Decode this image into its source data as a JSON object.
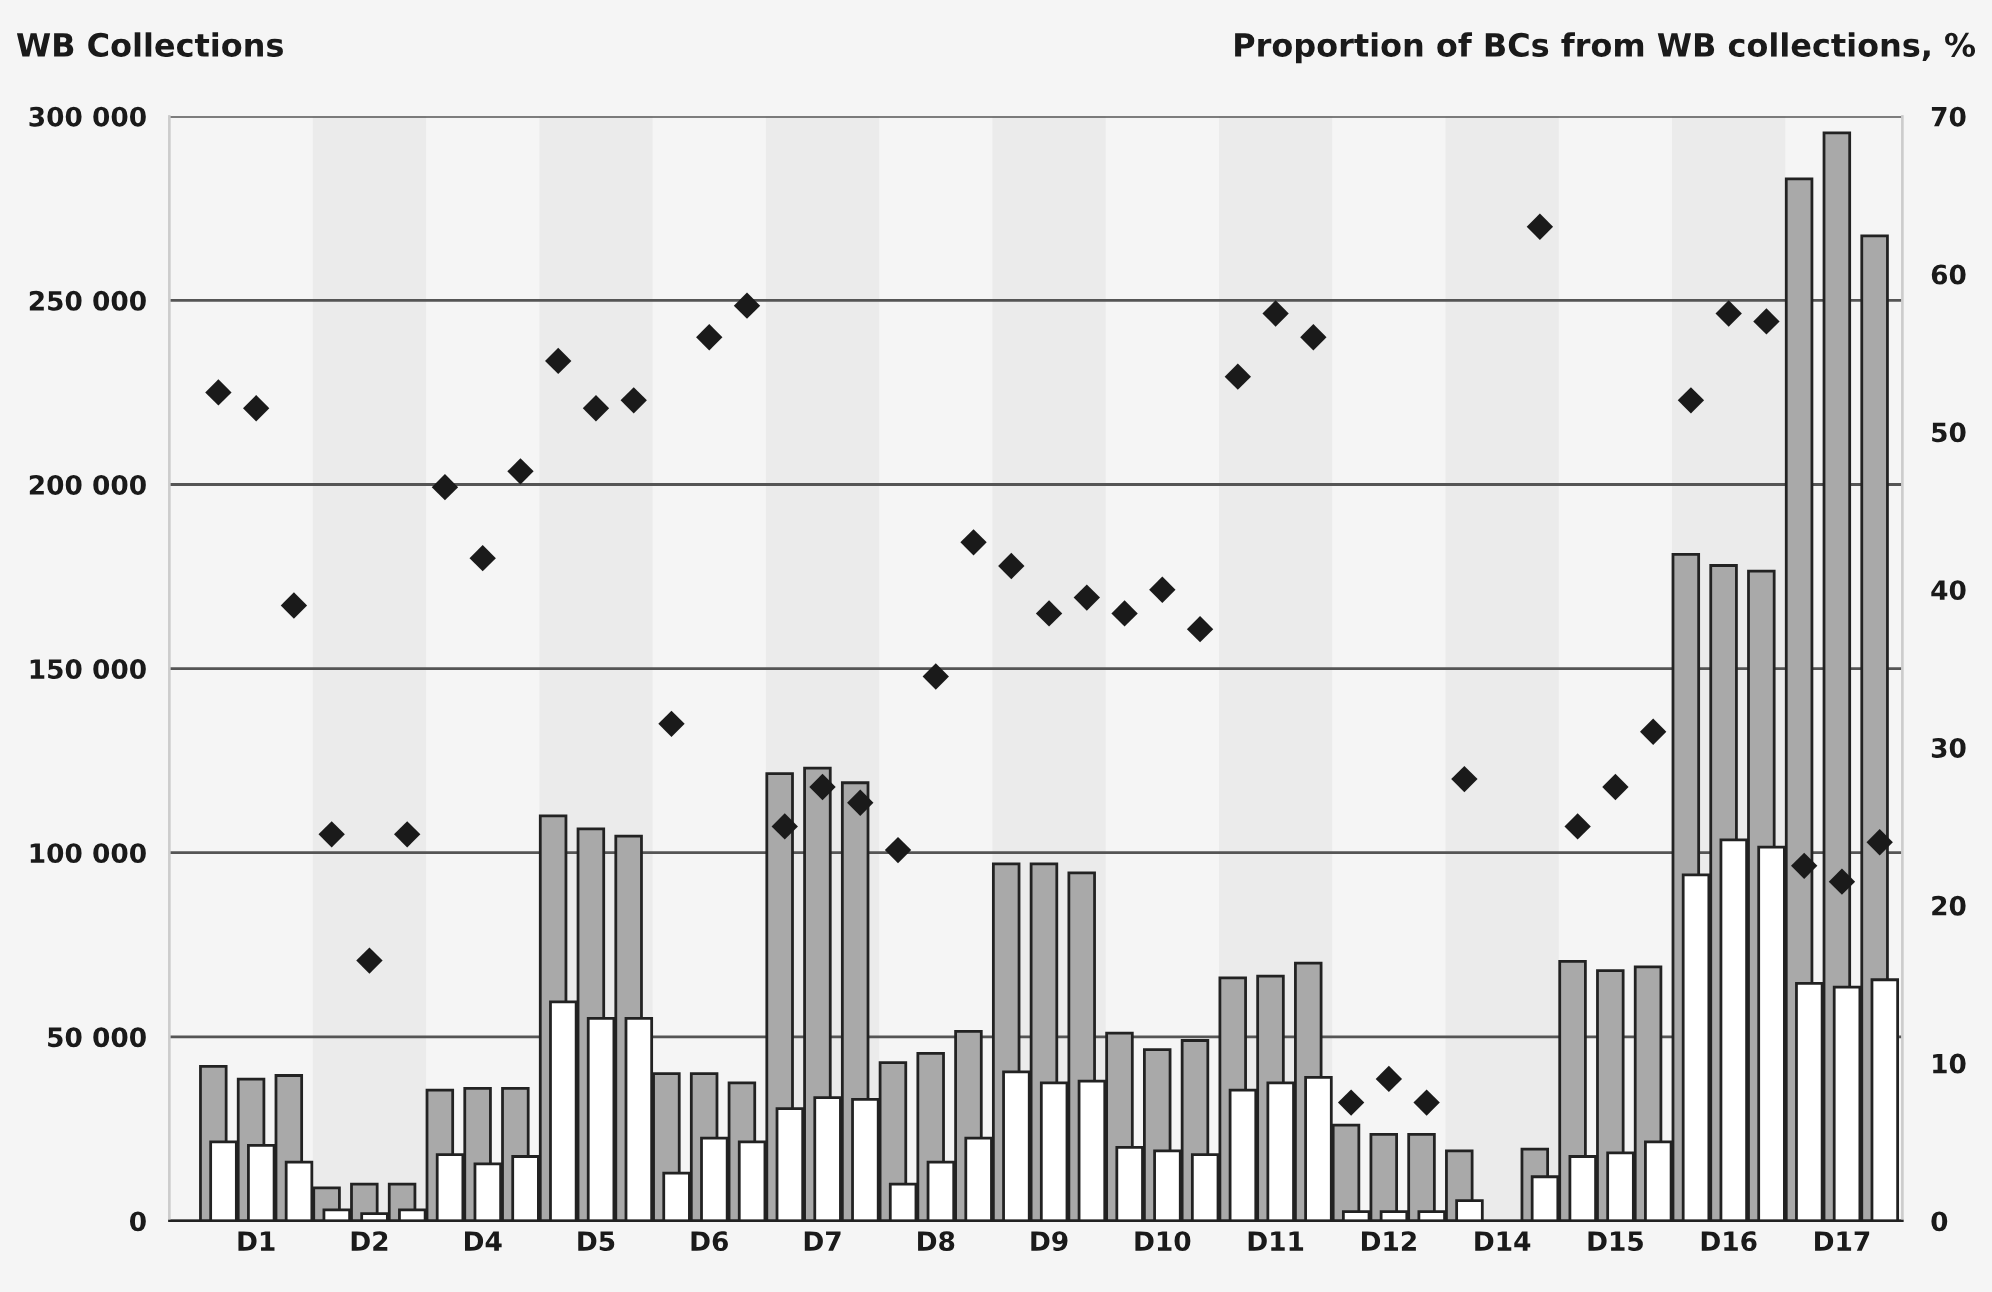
{
  "chart_data": {
    "type": "bar",
    "ylabel": "WB Collections",
    "y2label": "Proportion of BCs from WB collections, %",
    "categories": [
      null,
      "D1",
      null,
      null,
      "D2",
      null,
      null,
      "D4",
      null,
      null,
      "D5",
      null,
      null,
      "D6",
      null,
      null,
      "D7",
      null,
      null,
      "D8",
      null,
      null,
      "D9",
      null,
      null,
      "D10",
      null,
      null,
      "D11",
      null,
      null,
      "D12",
      null,
      null,
      "D14",
      null,
      null,
      "D15",
      null,
      null,
      "D16",
      null,
      null,
      "D17",
      null
    ],
    "series": [
      {
        "color": "#a9a9a9",
        "values": [
          42000,
          38500,
          39500,
          9000,
          10000,
          10000,
          35500,
          36000,
          36000,
          110000,
          106500,
          104500,
          40000,
          40000,
          37500,
          121500,
          123000,
          119000,
          43000,
          45500,
          51500,
          97000,
          97000,
          94500,
          51000,
          46500,
          49000,
          66000,
          66500,
          70000,
          26000,
          23500,
          23500,
          19000,
          null,
          19500,
          70500,
          68000,
          69000,
          181000,
          178000,
          176500,
          283000,
          295500,
          267500
        ]
      },
      {
        "color": "#ffffff",
        "values": [
          21500,
          20500,
          16000,
          3000,
          2000,
          3000,
          18000,
          15500,
          17500,
          59500,
          55000,
          55000,
          13000,
          22500,
          21500,
          30500,
          33500,
          33000,
          10000,
          16000,
          22500,
          40500,
          37500,
          38000,
          20000,
          19000,
          18000,
          35500,
          37500,
          39000,
          2500,
          2500,
          2500,
          5500,
          null,
          12000,
          17500,
          18500,
          21500,
          94000,
          103500,
          101500,
          64500,
          63500,
          65500
        ]
      },
      {
        "type": "scatter",
        "axis": "y2",
        "marker": "diamond",
        "color": "#1a1a1a",
        "values": [
          52.5,
          51.5,
          39,
          24.5,
          16.5,
          24.5,
          46.5,
          42,
          47.5,
          54.5,
          51.5,
          52,
          31.5,
          56,
          58,
          25,
          27.5,
          26.5,
          23.5,
          34.5,
          43,
          41.5,
          38.5,
          39.5,
          38.5,
          40,
          37.5,
          53.5,
          57.5,
          56,
          7.5,
          9,
          7.5,
          28,
          null,
          63,
          25,
          27.5,
          31,
          52,
          57.5,
          57,
          22.5,
          21.5,
          24
        ]
      }
    ],
    "ylim": [
      0,
      300000
    ],
    "yticks": [
      {
        "value": 0,
        "label": "0"
      },
      {
        "value": 50000,
        "label": "50 000"
      },
      {
        "value": 100000,
        "label": "100 000"
      },
      {
        "value": 150000,
        "label": "150 000"
      },
      {
        "value": 200000,
        "label": "200 000"
      },
      {
        "value": 250000,
        "label": "250 000"
      },
      {
        "value": 300000,
        "label": "300 000"
      }
    ],
    "y2lim": [
      0,
      70
    ],
    "y2ticks": [
      0,
      10,
      20,
      30,
      40,
      50,
      60,
      70
    ],
    "grid": "y",
    "legend": false
  }
}
